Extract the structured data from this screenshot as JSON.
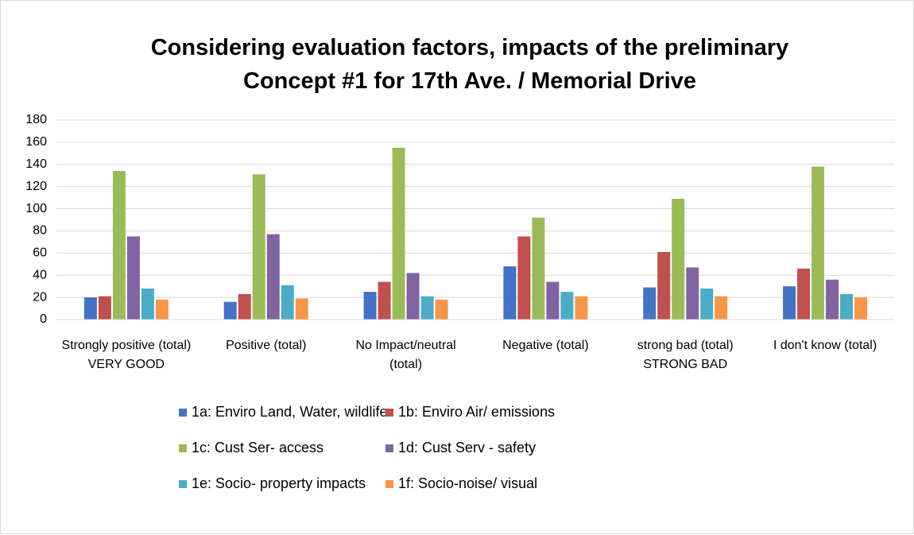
{
  "chart_data": {
    "type": "bar",
    "title": "Considering evaluation factors, impacts of the preliminary Concept #1 for 17th Ave. / Memorial Drive",
    "categories": [
      "Strongly positive (total) VERY GOOD",
      "Positive (total)",
      "No Impact/neutral (total)",
      "Negative (total)",
      "strong bad (total) STRONG BAD",
      "I don't know (total)"
    ],
    "series": [
      {
        "name": "1a: Enviro Land, Water, wildlife",
        "color": "#4472c4",
        "values": [
          20,
          16,
          25,
          48,
          29,
          30
        ]
      },
      {
        "name": "1b: Enviro Air/ emissions",
        "color": "#c0504d",
        "values": [
          21,
          23,
          34,
          75,
          61,
          46
        ]
      },
      {
        "name": "1c: Cust Ser- access",
        "color": "#9bbb59",
        "values": [
          134,
          131,
          155,
          92,
          109,
          138
        ]
      },
      {
        "name": "1d: Cust Serv - safety",
        "color": "#8064a2",
        "values": [
          75,
          77,
          42,
          34,
          47,
          36
        ]
      },
      {
        "name": "1e: Socio- property impacts",
        "color": "#4bacc6",
        "values": [
          28,
          31,
          21,
          25,
          28,
          23
        ]
      },
      {
        "name": "1f: Socio-noise/ visual",
        "color": "#f79646",
        "values": [
          18,
          19,
          18,
          21,
          21,
          20
        ]
      }
    ],
    "ylim": [
      0,
      180
    ],
    "yticks": [
      0,
      20,
      40,
      60,
      80,
      100,
      120,
      140,
      160,
      180
    ],
    "grid": true,
    "legend": "bottom"
  }
}
